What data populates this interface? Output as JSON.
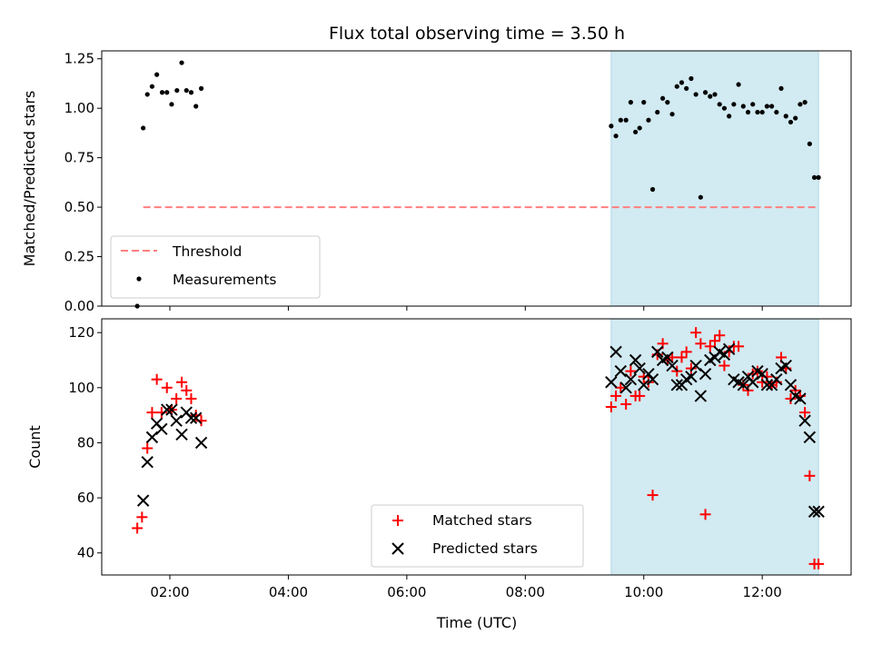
{
  "title": "Flux total observing time = 3.50 h",
  "xlabel": "Time (UTC)",
  "x_ticks": [
    "02:00",
    "04:00",
    "06:00",
    "08:00",
    "10:00",
    "12:00"
  ],
  "colors": {
    "threshold": "#ff7f7f",
    "shade": "#add8e6",
    "matched": "#ff0000",
    "predicted": "#000000",
    "measurements": "#000000"
  },
  "chart_data": [
    {
      "type": "scatter",
      "panel": "top",
      "ylabel": "Matched/Predicted stars",
      "xlim": [
        0.85,
        13.5
      ],
      "ylim": [
        0,
        1.29
      ],
      "y_ticks": [
        "0.00",
        "0.25",
        "0.50",
        "0.75",
        "1.00",
        "1.25"
      ],
      "y_tick_values": [
        0,
        0.25,
        0.5,
        0.75,
        1.0,
        1.25
      ],
      "shaded_span": [
        9.45,
        12.95
      ],
      "legend": {
        "position": "lower-left",
        "threshold_label": "Threshold",
        "measurements_label": "Measurements"
      },
      "threshold": {
        "name": "Threshold",
        "y": 0.5,
        "x_range": [
          1.55,
          12.95
        ]
      },
      "series": [
        {
          "name": "Measurements",
          "x": [
            1.45,
            1.55,
            1.62,
            1.7,
            1.78,
            1.87,
            1.95,
            2.03,
            2.12,
            2.2,
            2.28,
            2.36,
            2.44,
            2.53,
            9.45,
            9.53,
            9.61,
            9.7,
            9.78,
            9.86,
            9.93,
            10.0,
            10.08,
            10.15,
            10.23,
            10.32,
            10.4,
            10.48,
            10.56,
            10.64,
            10.72,
            10.8,
            10.88,
            10.96,
            11.04,
            11.12,
            11.2,
            11.28,
            11.36,
            11.44,
            11.52,
            11.6,
            11.68,
            11.76,
            11.84,
            11.92,
            12.0,
            12.08,
            12.16,
            12.24,
            12.32,
            12.4,
            12.48,
            12.56,
            12.64,
            12.72,
            12.8,
            12.88,
            12.95
          ],
          "y": [
            0.0,
            0.9,
            1.07,
            1.11,
            1.17,
            1.08,
            1.08,
            1.02,
            1.09,
            1.23,
            1.09,
            1.08,
            1.01,
            1.1,
            0.91,
            0.86,
            0.94,
            0.94,
            1.03,
            0.88,
            0.9,
            1.03,
            0.94,
            0.59,
            0.98,
            1.05,
            1.03,
            0.97,
            1.11,
            1.13,
            1.1,
            1.15,
            1.07,
            0.55,
            1.08,
            1.06,
            1.07,
            1.02,
            1.0,
            0.96,
            1.02,
            1.12,
            1.01,
            0.98,
            1.02,
            0.98,
            0.98,
            1.01,
            1.01,
            0.98,
            1.1,
            0.96,
            0.93,
            0.95,
            1.02,
            1.03,
            0.82,
            0.65,
            0.65
          ]
        }
      ]
    },
    {
      "type": "scatter",
      "panel": "bottom",
      "ylabel": "Count",
      "xlim": [
        0.85,
        13.5
      ],
      "ylim": [
        32,
        125
      ],
      "y_ticks": [
        "40",
        "60",
        "80",
        "100",
        "120"
      ],
      "y_tick_values": [
        40,
        60,
        80,
        100,
        120
      ],
      "shaded_span": [
        9.45,
        12.95
      ],
      "legend": {
        "position": "lower-center",
        "matched_label": "Matched stars",
        "predicted_label": "Predicted stars"
      },
      "series": [
        {
          "name": "Matched stars",
          "x": [
            1.45,
            1.53,
            1.62,
            1.7,
            1.78,
            1.86,
            1.95,
            2.03,
            2.11,
            2.2,
            2.28,
            2.36,
            2.44,
            2.53,
            9.45,
            9.53,
            9.61,
            9.7,
            9.78,
            9.86,
            9.93,
            10.0,
            10.08,
            10.15,
            10.23,
            10.32,
            10.4,
            10.48,
            10.56,
            10.64,
            10.72,
            10.8,
            10.88,
            10.96,
            11.04,
            11.12,
            11.2,
            11.28,
            11.36,
            11.44,
            11.52,
            11.6,
            11.68,
            11.76,
            11.84,
            11.92,
            12.0,
            12.08,
            12.16,
            12.24,
            12.32,
            12.4,
            12.48,
            12.56,
            12.64,
            12.72,
            12.8,
            12.88,
            12.95
          ],
          "y": [
            49,
            53,
            78,
            91,
            103,
            91,
            100,
            92,
            96,
            102,
            99,
            96,
            90,
            88,
            93,
            97,
            100,
            94,
            106,
            97,
            97,
            104,
            102,
            61,
            112,
            116,
            110,
            111,
            106,
            111,
            113,
            107,
            120,
            116,
            54,
            115,
            117,
            119,
            108,
            113,
            115,
            115,
            101,
            99,
            105,
            106,
            102,
            104,
            101,
            102,
            111,
            107,
            96,
            99,
            97,
            91,
            68,
            36,
            36
          ]
        },
        {
          "name": "Predicted stars",
          "x": [
            1.55,
            1.62,
            1.7,
            1.78,
            1.86,
            1.95,
            2.03,
            2.11,
            2.2,
            2.28,
            2.36,
            2.44,
            2.53,
            9.45,
            9.53,
            9.61,
            9.7,
            9.78,
            9.86,
            9.93,
            10.0,
            10.08,
            10.15,
            10.23,
            10.32,
            10.4,
            10.48,
            10.56,
            10.64,
            10.72,
            10.8,
            10.88,
            10.96,
            11.04,
            11.12,
            11.2,
            11.28,
            11.36,
            11.44,
            11.52,
            11.6,
            11.68,
            11.76,
            11.84,
            11.92,
            12.0,
            12.08,
            12.16,
            12.24,
            12.32,
            12.4,
            12.48,
            12.56,
            12.64,
            12.72,
            12.8,
            12.88,
            12.95
          ],
          "y": [
            59,
            73,
            82,
            87,
            85,
            92,
            92,
            88,
            83,
            91,
            89,
            89,
            80,
            102,
            113,
            106,
            100,
            103,
            110,
            107,
            101,
            105,
            103,
            113,
            110,
            111,
            108,
            101,
            101,
            103,
            104,
            108,
            97,
            105,
            110,
            111,
            113,
            112,
            114,
            103,
            102,
            101,
            104,
            102,
            106,
            105,
            101,
            101,
            103,
            107,
            108,
            101,
            97,
            96,
            88,
            82,
            55,
            55
          ]
        }
      ]
    }
  ]
}
